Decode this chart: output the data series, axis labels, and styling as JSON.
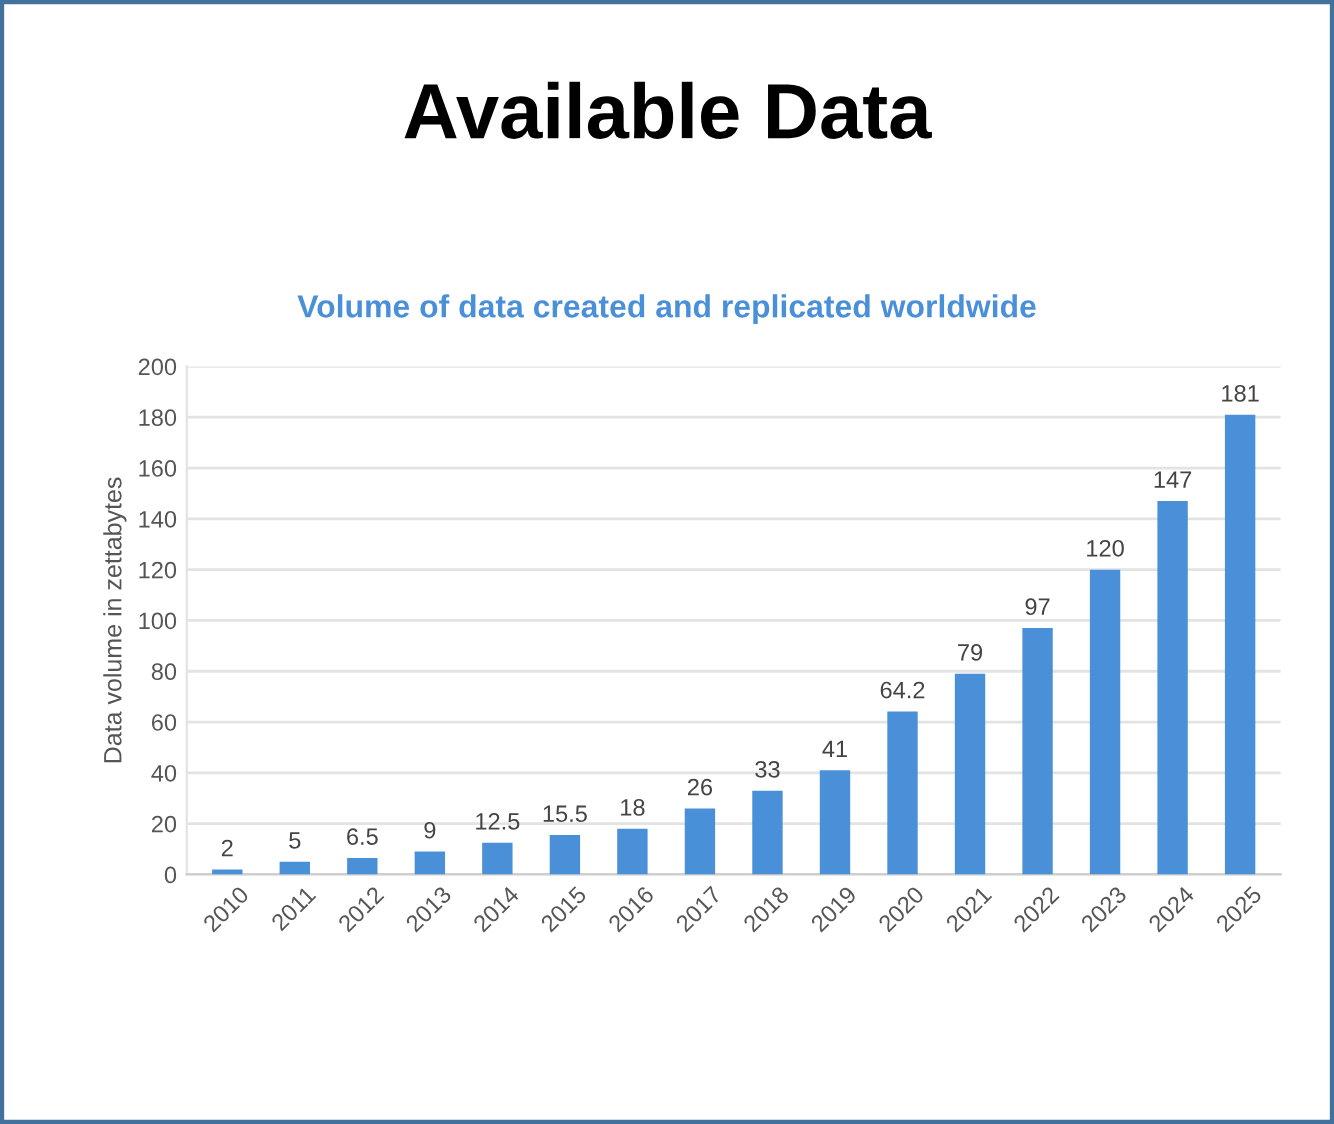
{
  "chart_data": {
    "type": "bar",
    "title": "Available Data",
    "subtitle": "Volume of data created and replicated worldwide",
    "ylabel": "Data volume in zettabytes",
    "categories": [
      "2010",
      "2011",
      "2012",
      "2013",
      "2014",
      "2015",
      "2016",
      "2017",
      "2018",
      "2019",
      "2020",
      "2021",
      "2022",
      "2023",
      "2024",
      "2025"
    ],
    "values": [
      2,
      5,
      6.5,
      9,
      12.5,
      15.5,
      18,
      26,
      33,
      41,
      64.2,
      79,
      97,
      120,
      147,
      181
    ],
    "color": "#4a90d9",
    "ylim": [
      0,
      200
    ],
    "yticks": [
      0,
      20,
      40,
      60,
      80,
      100,
      120,
      140,
      160,
      180,
      200
    ],
    "grid": "y",
    "data_labels": true,
    "legend": false
  }
}
